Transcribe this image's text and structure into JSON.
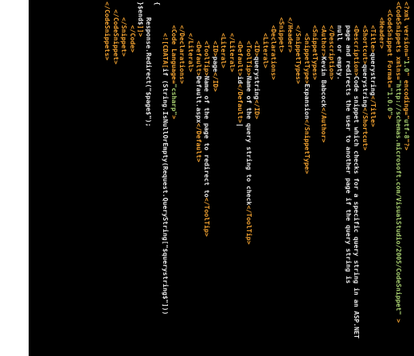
{
  "editor": {
    "language": "xml",
    "lines": [
      [
        {
          "k": "p",
          "s": "<?xml version=\""
        },
        {
          "k": "v",
          "s": "1.0"
        },
        {
          "k": "p",
          "s": "\" encoding=\""
        },
        {
          "k": "v",
          "s": "utf-8"
        },
        {
          "k": "p",
          "s": "\"?>"
        }
      ],
      [
        {
          "k": "t",
          "s": "<CodeSnippets "
        },
        {
          "k": "a",
          "s": "xmlns="
        },
        {
          "k": "v",
          "s": "\"http://schemas.microsoft.com/VisualStudio/2005/CodeSnippet\""
        },
        {
          "k": "t",
          "s": " >"
        }
      ],
      [
        {
          "k": "x",
          "s": "  "
        },
        {
          "k": "t",
          "s": "<CodeSnippet "
        },
        {
          "k": "a",
          "s": "Format="
        },
        {
          "k": "v",
          "s": "\"1.0.0\""
        },
        {
          "k": "t",
          "s": ">"
        }
      ],
      [
        {
          "k": "x",
          "s": "    "
        },
        {
          "k": "t",
          "s": "<Header>"
        }
      ],
      [
        {
          "k": "x",
          "s": "      "
        },
        {
          "k": "t",
          "s": "<Title>"
        },
        {
          "k": "x",
          "s": "querystring"
        },
        {
          "k": "t",
          "s": "</Title>"
        }
      ],
      [
        {
          "k": "x",
          "s": "      "
        },
        {
          "k": "t",
          "s": "<Shortcut>"
        },
        {
          "k": "x",
          "s": "querystring"
        },
        {
          "k": "t",
          "s": "</Shortcut>"
        }
      ],
      [
        {
          "k": "x",
          "s": "      "
        },
        {
          "k": "t",
          "s": "<Description>"
        },
        {
          "k": "x",
          "s": "Code snippet which checks for a specific query string in an ASP.NET"
        }
      ],
      [
        {
          "k": "x",
          "s": "      page and redirects the user to another page if the query string is"
        }
      ],
      [
        {
          "k": "x",
          "s": "      null or empty."
        }
      ],
      [
        {
          "k": "x",
          "s": "      "
        },
        {
          "k": "t",
          "s": "</Description>"
        }
      ],
      [
        {
          "k": "x",
          "s": "      "
        },
        {
          "k": "t",
          "s": "<Author>"
        },
        {
          "k": "x",
          "s": "Kevin Babcock"
        },
        {
          "k": "t",
          "s": "</Author>"
        }
      ],
      [
        {
          "k": "x",
          "s": "      "
        },
        {
          "k": "t",
          "s": "<SnippetTypes>"
        }
      ],
      [
        {
          "k": "x",
          "s": "        "
        },
        {
          "k": "t",
          "s": "<SnippetType>"
        },
        {
          "k": "x",
          "s": "Expansion"
        },
        {
          "k": "t",
          "s": "</SnippetType>"
        }
      ],
      [
        {
          "k": "x",
          "s": "      "
        },
        {
          "k": "t",
          "s": "</SnippetTypes>"
        }
      ],
      [
        {
          "k": "x",
          "s": "    "
        },
        {
          "k": "t",
          "s": "</Header>"
        }
      ],
      [
        {
          "k": "x",
          "s": "    "
        },
        {
          "k": "t",
          "s": "<Snippet>"
        }
      ],
      [
        {
          "k": "x",
          "s": "      "
        },
        {
          "k": "t",
          "s": "<Declarations>"
        }
      ],
      [
        {
          "k": "x",
          "s": "        "
        },
        {
          "k": "t",
          "s": "<Literal>"
        }
      ],
      [
        {
          "k": "x",
          "s": "          "
        },
        {
          "k": "t",
          "s": "<ID>"
        },
        {
          "k": "x",
          "s": "querystring"
        },
        {
          "k": "t",
          "s": "</ID>"
        }
      ],
      [
        {
          "k": "x",
          "s": "          "
        },
        {
          "k": "t",
          "s": "<ToolTip>"
        },
        {
          "k": "x",
          "s": "Name of the query string to check"
        },
        {
          "k": "t",
          "s": "</ToolTip>"
        }
      ],
      [
        {
          "k": "x",
          "s": "          "
        },
        {
          "k": "t",
          "s": "<Default>"
        },
        {
          "k": "x",
          "s": "id"
        },
        {
          "k": "t",
          "s": "</Default>"
        },
        {
          "k": "c",
          "s": "|"
        }
      ],
      [
        {
          "k": "x",
          "s": "        "
        },
        {
          "k": "t",
          "s": "</Literal>"
        }
      ],
      [
        {
          "k": "x",
          "s": "        "
        },
        {
          "k": "t",
          "s": "<Literal>"
        }
      ],
      [
        {
          "k": "x",
          "s": "          "
        },
        {
          "k": "t",
          "s": "<ID>"
        },
        {
          "k": "x",
          "s": "page"
        },
        {
          "k": "t",
          "s": "</ID>"
        }
      ],
      [
        {
          "k": "x",
          "s": "          "
        },
        {
          "k": "t",
          "s": "<ToolTip>"
        },
        {
          "k": "x",
          "s": "Name of the page to redirect to"
        },
        {
          "k": "t",
          "s": "</ToolTip>"
        }
      ],
      [
        {
          "k": "x",
          "s": "          "
        },
        {
          "k": "t",
          "s": "<Default>"
        },
        {
          "k": "x",
          "s": "Default.aspx"
        },
        {
          "k": "t",
          "s": "</Default>"
        }
      ],
      [
        {
          "k": "x",
          "s": "        "
        },
        {
          "k": "t",
          "s": "</Literal>"
        }
      ],
      [
        {
          "k": "x",
          "s": "      "
        },
        {
          "k": "t",
          "s": "</Declarations>"
        }
      ],
      [
        {
          "k": "x",
          "s": "      "
        },
        {
          "k": "t",
          "s": "<Code "
        },
        {
          "k": "a",
          "s": "Language="
        },
        {
          "k": "v",
          "s": "\"csharp\""
        },
        {
          "k": "t",
          "s": ">"
        }
      ],
      [
        {
          "k": "x",
          "s": "        "
        },
        {
          "k": "p",
          "s": "<![CDATA["
        },
        {
          "k": "x",
          "s": "if (String.IsNullOrEmpty(Request.QueryString[\"$querystring$\"]))"
        }
      ],
      [
        {
          "k": "x",
          "s": "{"
        }
      ],
      [
        {
          "k": "x",
          "s": "    Response.Redirect(\"$page$\");"
        }
      ],
      [
        {
          "k": "x",
          "s": "}$end$"
        },
        {
          "k": "p",
          "s": "]]>"
        }
      ],
      [
        {
          "k": "x",
          "s": "      "
        },
        {
          "k": "t",
          "s": "</Code>"
        }
      ],
      [
        {
          "k": "x",
          "s": "    "
        },
        {
          "k": "t",
          "s": "</Snippet>"
        }
      ],
      [
        {
          "k": "x",
          "s": "  "
        },
        {
          "k": "t",
          "s": "</CodeSnippet>"
        }
      ],
      [
        {
          "k": "t",
          "s": "</CodeSnippets>"
        }
      ]
    ]
  }
}
